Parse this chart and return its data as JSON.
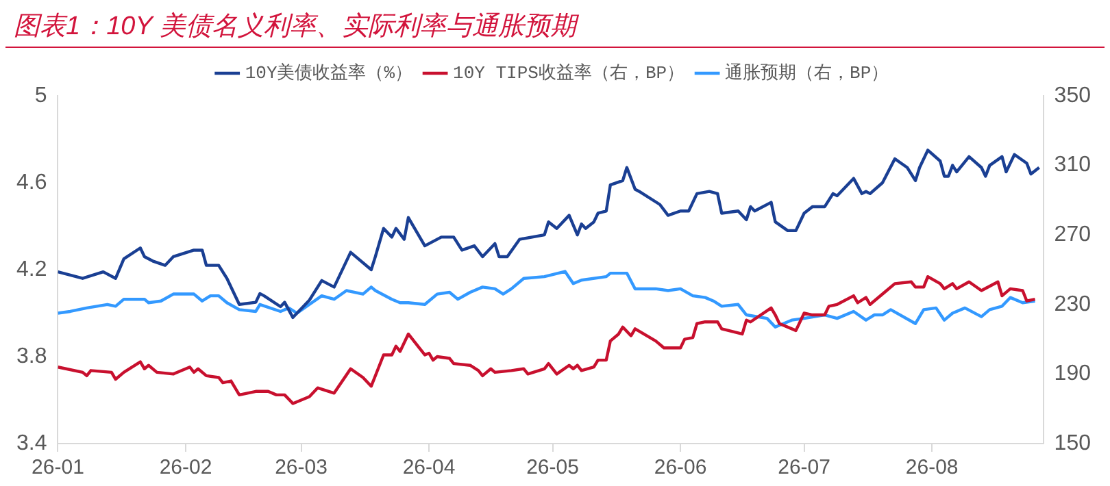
{
  "chart_data": {
    "type": "line",
    "title": "图表1：10Y 美债名义利率、实际利率与通胀预期",
    "legend": "top",
    "marker": "none",
    "line_style": "solid",
    "xlim": [
      "--01-01",
      "--08-28"
    ],
    "xticks": [
      {
        "value": "--01-01",
        "label": "26-01"
      },
      {
        "value": "--02-01",
        "label": "26-02"
      },
      {
        "value": "--03-01",
        "label": "26-03"
      },
      {
        "value": "--04-01",
        "label": "26-04"
      },
      {
        "value": "--05-01",
        "label": "26-05"
      },
      {
        "value": "--06-01",
        "label": "26-06"
      },
      {
        "value": "--07-01",
        "label": "26-07"
      },
      {
        "value": "--08-01",
        "label": "26-08"
      }
    ],
    "ylim": [
      3.4,
      5
    ],
    "yticks": [
      3.4,
      3.8,
      4.2,
      4.6,
      5
    ],
    "y2lim": [
      150,
      350
    ],
    "y2ticks": [
      150,
      190,
      230,
      270,
      310,
      350
    ],
    "series": [
      {
        "name": "10Y美债收益率（%）",
        "color": "#1a3f93",
        "x": [
          "--01-01",
          "--01-07",
          "--01-12",
          "--01-15",
          "--01-17",
          "--01-21",
          "--01-22",
          "--01-24",
          "--01-27",
          "--01-29",
          "--02-03",
          "--02-05",
          "--02-06",
          "--02-09",
          "--02-11",
          "--02-14",
          "--02-18",
          "--02-19",
          "--02-20",
          "--02-24",
          "--02-25",
          "--02-27",
          "--03-03",
          "--03-06",
          "--03-09",
          "--03-13",
          "--03-18",
          "--03-19",
          "--03-21",
          "--03-23",
          "--03-24",
          "--03-26",
          "--03-27",
          "--03-31",
          "--04-04",
          "--04-07",
          "--04-09",
          "--04-12",
          "--04-14",
          "--04-17",
          "--04-18",
          "--04-20",
          "--04-23",
          "--04-29",
          "--04-30",
          "--05-02",
          "--05-05",
          "--05-07",
          "--05-08",
          "--05-09",
          "--05-11",
          "--05-12",
          "--05-14",
          "--05-15",
          "--05-18",
          "--05-19",
          "--05-21",
          "--05-22",
          "--05-27",
          "--05-29",
          "--06-01",
          "--06-03",
          "--06-05",
          "--06-08",
          "--06-10",
          "--06-11",
          "--06-15",
          "--06-17",
          "--06-18",
          "--06-19",
          "--06-23",
          "--06-24",
          "--06-27",
          "--06-29",
          "--07-01",
          "--07-03",
          "--07-06",
          "--07-08",
          "--07-09",
          "--07-13",
          "--07-15",
          "--07-16",
          "--07-17",
          "--07-20",
          "--07-23",
          "--07-26",
          "--07-28",
          "--07-29",
          "--07-31",
          "--08-03",
          "--08-04",
          "--08-05",
          "--08-06",
          "--08-07",
          "--08-10",
          "--08-13",
          "--08-14",
          "--08-15",
          "--08-18",
          "--08-19",
          "--08-21",
          "--08-24",
          "--08-25",
          "--08-27"
        ],
        "values": [
          4.19,
          4.16,
          4.19,
          4.16,
          4.25,
          4.3,
          4.26,
          4.24,
          4.22,
          4.26,
          4.29,
          4.29,
          4.22,
          4.22,
          4.16,
          4.04,
          4.05,
          4.09,
          4.08,
          4.03,
          4.05,
          3.98,
          4.06,
          4.15,
          4.12,
          4.28,
          4.2,
          4.26,
          4.39,
          4.35,
          4.39,
          4.34,
          4.44,
          4.31,
          4.35,
          4.35,
          4.29,
          4.31,
          4.26,
          4.32,
          4.26,
          4.26,
          4.34,
          4.36,
          4.42,
          4.39,
          4.45,
          4.36,
          4.41,
          4.39,
          4.42,
          4.46,
          4.47,
          4.59,
          4.61,
          4.67,
          4.57,
          4.56,
          4.5,
          4.45,
          4.47,
          4.47,
          4.55,
          4.56,
          4.55,
          4.46,
          4.47,
          4.43,
          4.49,
          4.47,
          4.51,
          4.42,
          4.38,
          4.38,
          4.46,
          4.49,
          4.49,
          4.55,
          4.54,
          4.62,
          4.55,
          4.56,
          4.55,
          4.6,
          4.71,
          4.67,
          4.61,
          4.67,
          4.75,
          4.7,
          4.63,
          4.63,
          4.68,
          4.65,
          4.72,
          4.67,
          4.63,
          4.68,
          4.72,
          4.65,
          4.73,
          4.69,
          4.64,
          4.67
        ]
      },
      {
        "name": "10Y TIPS收益率（右，BP）",
        "color": "#c8102e",
        "axis": "y2",
        "x": [
          "--01-01",
          "--01-07",
          "--01-08",
          "--01-09",
          "--01-14",
          "--01-15",
          "--01-17",
          "--01-21",
          "--01-22",
          "--01-23",
          "--01-25",
          "--01-29",
          "--02-02",
          "--02-03",
          "--02-04",
          "--02-06",
          "--02-09",
          "--02-10",
          "--02-12",
          "--02-14",
          "--02-18",
          "--02-21",
          "--02-23",
          "--02-25",
          "--02-27",
          "--03-03",
          "--03-05",
          "--03-09",
          "--03-13",
          "--03-16",
          "--03-18",
          "--03-19",
          "--03-21",
          "--03-23",
          "--03-24",
          "--03-25",
          "--03-27",
          "--03-31",
          "--04-01",
          "--04-02",
          "--04-03",
          "--04-06",
          "--04-07",
          "--04-11",
          "--04-13",
          "--04-14",
          "--04-16",
          "--04-17",
          "--04-21",
          "--04-24",
          "--04-25",
          "--04-29",
          "--04-30",
          "--05-02",
          "--05-05",
          "--05-06",
          "--05-07",
          "--05-08",
          "--05-11",
          "--05-12",
          "--05-14",
          "--05-15",
          "--05-17",
          "--05-18",
          "--05-20",
          "--05-21",
          "--05-26",
          "--05-28",
          "--06-01",
          "--06-02",
          "--06-04",
          "--06-05",
          "--06-07",
          "--06-10",
          "--06-11",
          "--06-16",
          "--06-17",
          "--06-18",
          "--06-23",
          "--06-24",
          "--06-25",
          "--06-29",
          "--07-01",
          "--07-03",
          "--07-06",
          "--07-07",
          "--07-09",
          "--07-13",
          "--07-14",
          "--07-16",
          "--07-17",
          "--07-21",
          "--07-23",
          "--07-27",
          "--07-28",
          "--07-30",
          "--07-31",
          "--08-03",
          "--08-04",
          "--08-06",
          "--08-07",
          "--08-10",
          "--08-13",
          "--08-17",
          "--08-18",
          "--08-20",
          "--08-23",
          "--08-24",
          "--08-26"
        ],
        "values": [
          194,
          191,
          189,
          192,
          191,
          187,
          191,
          197,
          193,
          195,
          191,
          190,
          194,
          191,
          193,
          189,
          188,
          185,
          186,
          178,
          180,
          180,
          178,
          178,
          173,
          177,
          182,
          179,
          193,
          188,
          183,
          189,
          201,
          201,
          206,
          203,
          213,
          201,
          202,
          198,
          200,
          199,
          196,
          195,
          192,
          189,
          193,
          191,
          192,
          193,
          190,
          193,
          196,
          190,
          195,
          193,
          195,
          192,
          194,
          198,
          198,
          209,
          213,
          217,
          212,
          216,
          209,
          205,
          205,
          210,
          211,
          219,
          220,
          220,
          216,
          213,
          221,
          220,
          228,
          224,
          219,
          215,
          225,
          224,
          224,
          229,
          230,
          235,
          231,
          234,
          230,
          238,
          242,
          243,
          240,
          240,
          246,
          242,
          239,
          242,
          239,
          243,
          238,
          243,
          235,
          239,
          238,
          232,
          233
        ]
      },
      {
        "name": "通胀预期（右，BP）",
        "color": "#3399ff",
        "axis": "y2",
        "x": [
          "--01-01",
          "--01-04",
          "--01-08",
          "--01-13",
          "--01-15",
          "--01-17",
          "--01-22",
          "--01-23",
          "--01-26",
          "--01-29",
          "--02-01",
          "--02-03",
          "--02-05",
          "--02-07",
          "--02-09",
          "--02-11",
          "--02-14",
          "--02-18",
          "--02-19",
          "--02-24",
          "--02-26",
          "--02-28",
          "--03-03",
          "--03-06",
          "--03-09",
          "--03-12",
          "--03-16",
          "--03-18",
          "--03-19",
          "--03-23",
          "--03-25",
          "--03-27",
          "--03-31",
          "--04-03",
          "--04-06",
          "--04-08",
          "--04-11",
          "--04-14",
          "--04-17",
          "--04-19",
          "--04-21",
          "--04-24",
          "--04-29",
          "--05-04",
          "--05-06",
          "--05-08",
          "--05-14",
          "--05-15",
          "--05-19",
          "--05-21",
          "--05-26",
          "--05-29",
          "--06-01",
          "--06-04",
          "--06-07",
          "--06-09",
          "--06-11",
          "--06-15",
          "--06-17",
          "--06-22",
          "--06-24",
          "--06-28",
          "--07-01",
          "--07-06",
          "--07-09",
          "--07-13",
          "--07-16",
          "--07-18",
          "--07-20",
          "--07-22",
          "--07-28",
          "--07-30",
          "--08-02",
          "--08-04",
          "--08-06",
          "--08-09",
          "--08-13",
          "--08-15",
          "--08-18",
          "--08-20",
          "--08-23",
          "--08-26"
        ],
        "values": [
          225,
          226,
          228,
          230,
          229,
          233,
          233,
          231,
          232,
          236,
          236,
          236,
          232,
          235,
          235,
          231,
          227,
          226,
          230,
          226,
          228,
          225,
          230,
          235,
          233,
          238,
          236,
          240,
          238,
          233,
          231,
          231,
          230,
          236,
          237,
          233,
          237,
          240,
          239,
          236,
          239,
          245,
          246,
          249,
          242,
          244,
          246,
          248,
          248,
          239,
          239,
          238,
          239,
          235,
          234,
          232,
          229,
          230,
          224,
          222,
          217,
          221,
          222,
          224,
          222,
          226,
          221,
          224,
          224,
          227,
          219,
          227,
          228,
          221,
          225,
          228,
          223,
          227,
          229,
          234,
          231,
          232
        ]
      }
    ]
  }
}
